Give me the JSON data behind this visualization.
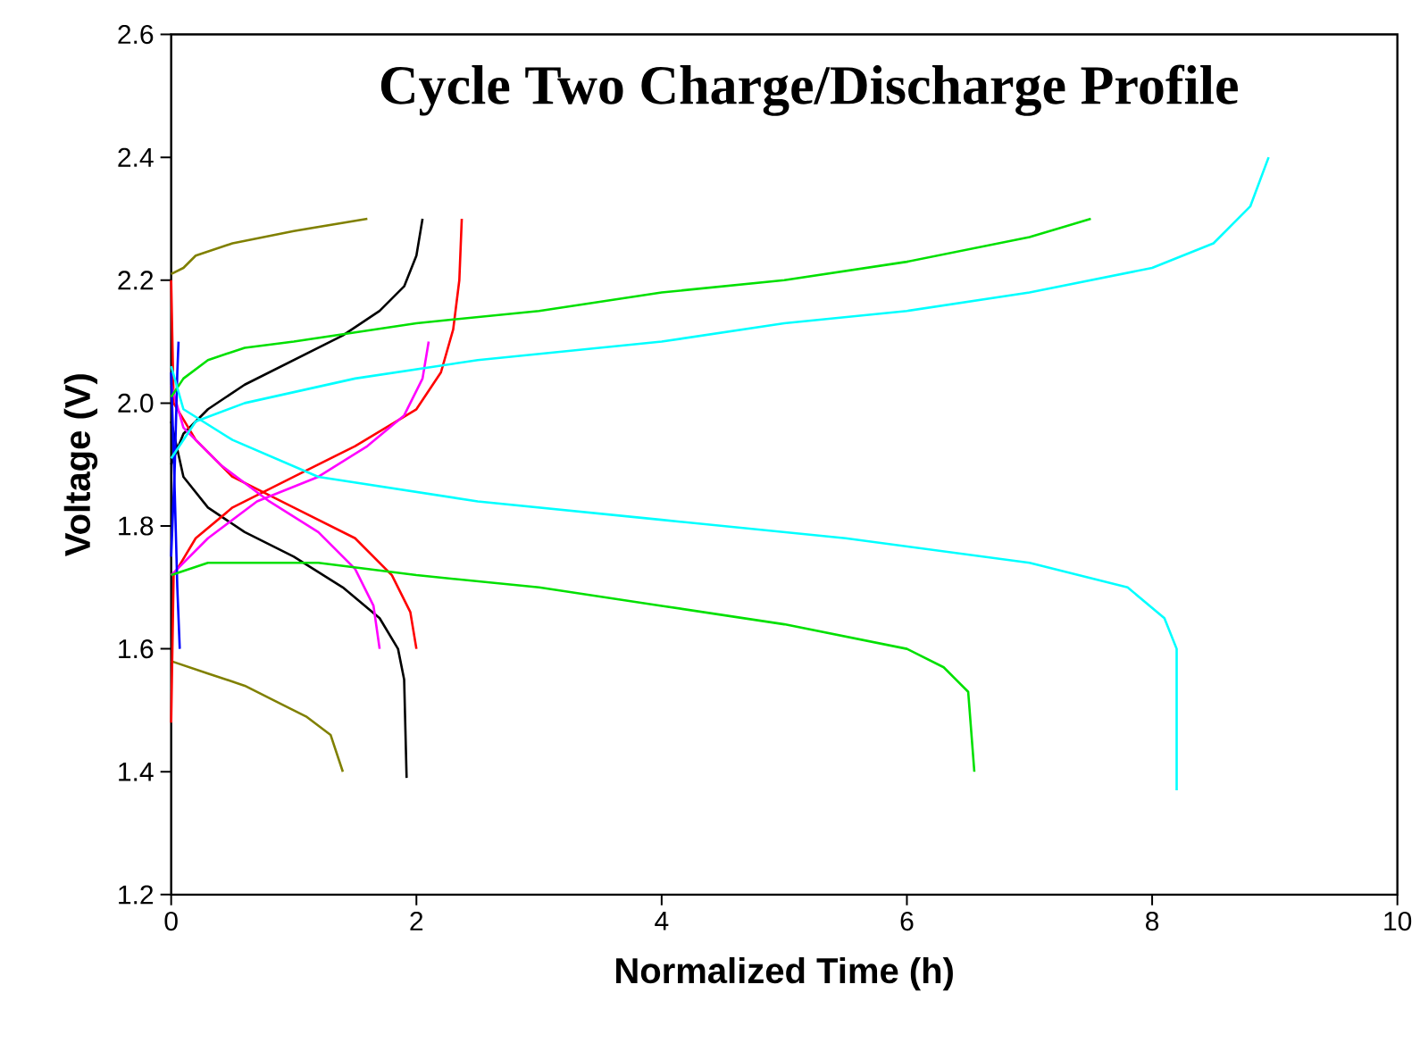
{
  "chart_data": {
    "type": "line",
    "title": "Cycle Two Charge/Discharge Profile",
    "xlabel": "Normalized Time (h)",
    "ylabel": "Voltage (V)",
    "xlim": [
      0,
      10
    ],
    "ylim": [
      1.2,
      2.6
    ],
    "xticks": [
      0,
      2,
      4,
      6,
      8,
      10
    ],
    "yticks": [
      1.2,
      1.4,
      1.6,
      1.8,
      {
        "value": 2.0,
        "label": "2.0"
      },
      2.2,
      2.4,
      2.6
    ],
    "grid": false,
    "marker": "none",
    "line_style": "solid",
    "series": [
      {
        "color": "#808000",
        "x": [
          0,
          0.1,
          0.2,
          0.5,
          1.0,
          1.6
        ],
        "values": [
          2.21,
          2.22,
          2.24,
          2.26,
          2.28,
          2.3
        ]
      },
      {
        "color": "#808000",
        "x": [
          0,
          0.3,
          0.6,
          0.9,
          1.1,
          1.3,
          1.4
        ],
        "values": [
          1.58,
          1.56,
          1.54,
          1.51,
          1.49,
          1.46,
          1.4
        ]
      },
      {
        "color": "#000000",
        "x": [
          0,
          0.1,
          0.3,
          0.6,
          1.0,
          1.4,
          1.7,
          1.9,
          2.0,
          2.05
        ],
        "values": [
          1.9,
          1.95,
          1.99,
          2.03,
          2.07,
          2.11,
          2.15,
          2.19,
          2.24,
          2.3
        ]
      },
      {
        "color": "#000000",
        "x": [
          0,
          0.1,
          0.3,
          0.6,
          1.0,
          1.4,
          1.7,
          1.85,
          1.9,
          1.92
        ],
        "values": [
          1.97,
          1.88,
          1.83,
          1.79,
          1.75,
          1.7,
          1.65,
          1.6,
          1.55,
          1.39
        ]
      },
      {
        "color": "#ff0000",
        "x": [
          0,
          0.02,
          0.2,
          0.5,
          1.0,
          1.5,
          2.0,
          2.2,
          2.3,
          2.35,
          2.37
        ],
        "values": [
          1.48,
          1.72,
          1.78,
          1.83,
          1.88,
          1.93,
          1.99,
          2.05,
          2.12,
          2.2,
          2.3
        ]
      },
      {
        "color": "#ff0000",
        "x": [
          0,
          0.02,
          0.2,
          0.5,
          1.0,
          1.5,
          1.8,
          1.95,
          2.0
        ],
        "values": [
          2.2,
          2.0,
          1.94,
          1.88,
          1.83,
          1.78,
          1.72,
          1.66,
          1.6
        ]
      },
      {
        "color": "#ff00ff",
        "x": [
          0,
          0.3,
          0.7,
          1.2,
          1.6,
          1.9,
          2.05,
          2.1
        ],
        "values": [
          1.72,
          1.78,
          1.84,
          1.88,
          1.93,
          1.98,
          2.04,
          2.1
        ]
      },
      {
        "color": "#ff00ff",
        "x": [
          0,
          0.1,
          0.4,
          0.8,
          1.2,
          1.5,
          1.65,
          1.7
        ],
        "values": [
          2.03,
          1.96,
          1.9,
          1.84,
          1.79,
          1.73,
          1.67,
          1.6
        ]
      },
      {
        "color": "#0000ff",
        "x": [
          0,
          0.03,
          0.05,
          0.06
        ],
        "values": [
          1.75,
          1.9,
          2.05,
          2.1
        ]
      },
      {
        "color": "#0000ff",
        "x": [
          0,
          0.03,
          0.05,
          0.07
        ],
        "values": [
          2.05,
          1.85,
          1.7,
          1.6
        ]
      },
      {
        "color": "#00e000",
        "x": [
          0,
          0.1,
          0.3,
          0.6,
          1.0,
          2,
          3,
          4,
          5,
          6,
          7,
          7.5
        ],
        "values": [
          2.01,
          2.04,
          2.07,
          2.09,
          2.1,
          2.13,
          2.15,
          2.18,
          2.2,
          2.23,
          2.27,
          2.3
        ]
      },
      {
        "color": "#00e000",
        "x": [
          0,
          0.3,
          1.2,
          2,
          3,
          4,
          5,
          6,
          6.3,
          6.5,
          6.55
        ],
        "values": [
          1.72,
          1.74,
          1.74,
          1.72,
          1.7,
          1.67,
          1.64,
          1.6,
          1.57,
          1.53,
          1.4
        ]
      },
      {
        "color": "#00ffff",
        "x": [
          0,
          0.2,
          0.6,
          1.5,
          2.5,
          4,
          5,
          6,
          7,
          8,
          8.5,
          8.8,
          8.95
        ],
        "values": [
          1.91,
          1.97,
          2.0,
          2.04,
          2.07,
          2.1,
          2.13,
          2.15,
          2.18,
          2.22,
          2.26,
          2.32,
          2.4
        ]
      },
      {
        "color": "#00ffff",
        "x": [
          0,
          0.1,
          0.5,
          1.2,
          2.5,
          4,
          5.5,
          7,
          7.8,
          8.1,
          8.2,
          8.2
        ],
        "values": [
          2.06,
          1.99,
          1.94,
          1.88,
          1.84,
          1.81,
          1.78,
          1.74,
          1.7,
          1.65,
          1.6,
          1.37
        ]
      }
    ]
  }
}
